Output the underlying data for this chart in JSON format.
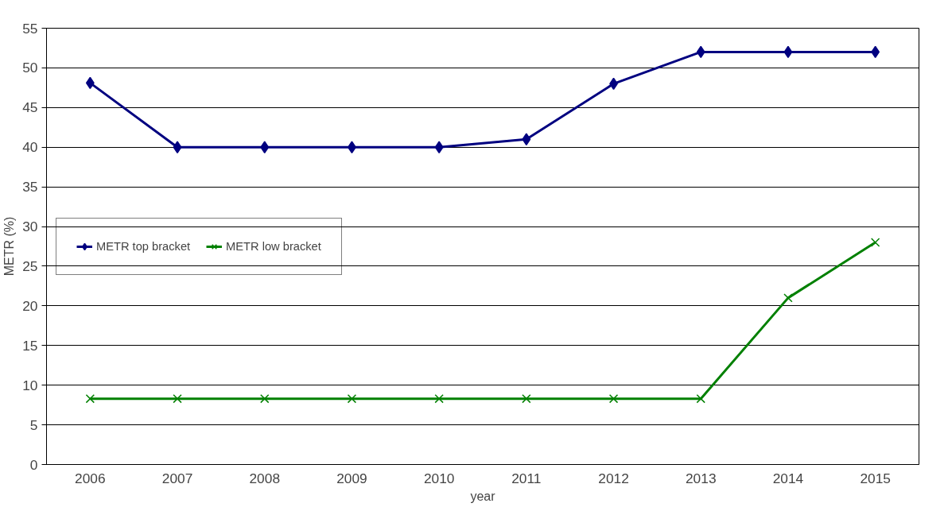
{
  "chart_data": {
    "type": "line",
    "categories": [
      "2006",
      "2007",
      "2008",
      "2009",
      "2010",
      "2011",
      "2012",
      "2013",
      "2014",
      "2015"
    ],
    "series": [
      {
        "name": "METR top bracket",
        "color": "#000080",
        "marker": "diamond",
        "values": [
          48.1,
          40,
          40,
          40,
          40,
          41,
          48,
          52,
          52,
          52
        ]
      },
      {
        "name": "METR low bracket",
        "color": "#008000",
        "marker": "cross",
        "values": [
          8.3,
          8.3,
          8.3,
          8.3,
          8.3,
          8.3,
          8.3,
          8.3,
          21,
          28
        ]
      }
    ],
    "xlabel": "year",
    "ylabel": "METR (%)",
    "ylim": [
      0,
      55
    ],
    "yticks": [
      0,
      5,
      10,
      15,
      20,
      25,
      30,
      35,
      40,
      45,
      50,
      55
    ],
    "grid": "y",
    "legend": "left",
    "line_style": "solid"
  }
}
